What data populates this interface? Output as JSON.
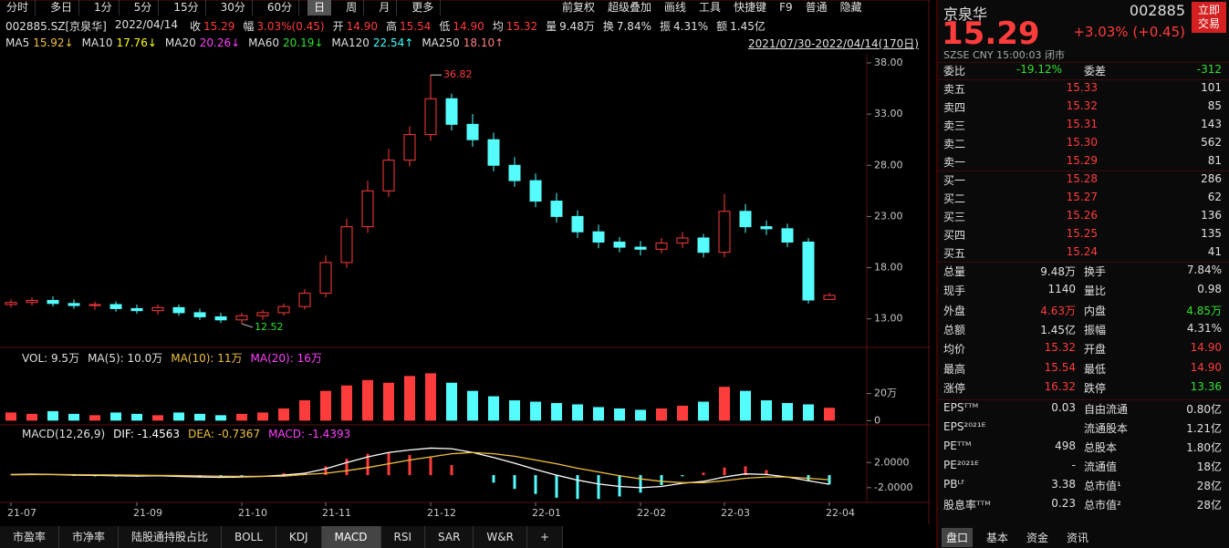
{
  "toolbar": {
    "periods": [
      "分时",
      "多日",
      "1分",
      "5分",
      "15分",
      "30分",
      "60分",
      "日",
      "周",
      "月",
      "更多"
    ],
    "active_period": 7,
    "tools": [
      "前复权",
      "超级叠加",
      "画线",
      "工具",
      "快捷键",
      "F9",
      "普通",
      "隐藏"
    ]
  },
  "quote_strip": {
    "symbol": "002885.SZ[京泉华]",
    "date": "2022/04/14",
    "items": [
      {
        "label": "收",
        "value": "15.29",
        "color": "#ff3c3c"
      },
      {
        "label": "幅",
        "value": "3.03%(0.45)",
        "color": "#ff3c3c"
      },
      {
        "label": "开",
        "value": "14.90",
        "color": "#ff3c3c"
      },
      {
        "label": "高",
        "value": "15.54",
        "color": "#ff3c3c"
      },
      {
        "label": "低",
        "value": "14.90",
        "color": "#ff3c3c"
      },
      {
        "label": "均",
        "value": "15.32",
        "color": "#ff3c3c"
      },
      {
        "label": "量",
        "value": "9.48万",
        "color": "#e0e0e0"
      },
      {
        "label": "换",
        "value": "7.84%",
        "color": "#e0e0e0"
      },
      {
        "label": "振",
        "value": "4.31%",
        "color": "#e0e0e0"
      },
      {
        "label": "额",
        "value": "1.45亿",
        "color": "#e0e0e0"
      }
    ]
  },
  "ma_legend": {
    "items": [
      {
        "label": "MA5",
        "value": "15.92↓",
        "color": "#f0c040"
      },
      {
        "label": "MA10",
        "value": "17.76↓",
        "color": "#ffff00"
      },
      {
        "label": "MA20",
        "value": "20.26↓",
        "color": "#ff40ff"
      },
      {
        "label": "MA60",
        "value": "20.19↓",
        "color": "#30e030"
      },
      {
        "label": "MA120",
        "value": "22.54↑",
        "color": "#40ffff"
      },
      {
        "label": "MA250",
        "value": "18.10↑",
        "color": "#ff8080"
      }
    ],
    "range": "2021/07/30-2022/04/14(170日)"
  },
  "chart_data": [
    {
      "type": "candlestick",
      "up_color": "#ff3c3c",
      "down_color": "#54fcfc",
      "ylim": [
        10.3,
        38.8
      ],
      "yticks": [
        {
          "value": 38,
          "label": "38.00"
        },
        {
          "value": 33,
          "label": "33.00"
        },
        {
          "value": 28,
          "label": "28.00"
        },
        {
          "value": 23,
          "label": "23.00"
        },
        {
          "value": 18,
          "label": "18.00"
        },
        {
          "value": 13,
          "label": "13.00"
        }
      ],
      "open": [
        14.4,
        14.6,
        14.8,
        14.5,
        14.3,
        14.4,
        14.0,
        13.8,
        14.1,
        13.6,
        13.2,
        12.9,
        13.3,
        13.6,
        14.2,
        15.5,
        18.5,
        22.0,
        25.5,
        28.5,
        31.0,
        34.5,
        32.0,
        30.5,
        28.0,
        26.5,
        24.5,
        23.0,
        21.5,
        20.5,
        20.0,
        19.8,
        20.4,
        20.9,
        19.5,
        23.5,
        22.0,
        21.8,
        20.5,
        14.9
      ],
      "high": [
        14.9,
        15.1,
        15.2,
        14.9,
        14.7,
        14.7,
        14.4,
        14.4,
        14.4,
        14.0,
        13.6,
        13.6,
        13.9,
        14.5,
        15.9,
        19.2,
        22.8,
        26.5,
        29.6,
        31.8,
        36.82,
        35.0,
        33.0,
        31.2,
        28.8,
        27.2,
        25.3,
        23.6,
        22.2,
        21.0,
        20.6,
        20.9,
        21.5,
        21.3,
        25.2,
        24.2,
        22.6,
        22.3,
        20.9,
        15.54
      ],
      "low": [
        14.1,
        14.3,
        14.2,
        14.0,
        13.9,
        13.7,
        13.5,
        13.4,
        13.3,
        12.9,
        12.6,
        12.52,
        12.9,
        13.3,
        13.9,
        15.1,
        18.0,
        21.4,
        24.9,
        27.9,
        30.4,
        31.4,
        29.8,
        27.4,
        25.9,
        23.9,
        22.4,
        20.9,
        19.9,
        19.5,
        19.2,
        19.4,
        19.9,
        19.0,
        19.0,
        21.4,
        21.2,
        20.0,
        14.5,
        14.9
      ],
      "close": [
        14.6,
        14.8,
        14.5,
        14.3,
        14.4,
        14.0,
        13.8,
        14.1,
        13.6,
        13.2,
        12.9,
        13.3,
        13.6,
        14.2,
        15.5,
        18.5,
        22.0,
        25.5,
        28.5,
        31.0,
        34.5,
        32.0,
        30.5,
        28.0,
        26.5,
        24.5,
        23.0,
        21.5,
        20.5,
        20.0,
        19.8,
        20.4,
        20.9,
        19.5,
        23.5,
        22.0,
        21.8,
        20.5,
        14.84,
        15.29
      ],
      "annotations": [
        {
          "label": "36.82",
          "value": 36.82,
          "field": "high"
        },
        {
          "label": "12.52",
          "value": 12.52,
          "field": "low"
        }
      ]
    },
    {
      "type": "bar",
      "legend": [
        "VOL: 9.5万",
        "MA(5): 10.0万",
        "MA(10): 11万",
        "MA(20): 16万"
      ],
      "legend_colors": [
        "#e0e0e0",
        "#e0e0e0",
        "#f0c040",
        "#ff40ff"
      ],
      "ylim": [
        -2.5,
        39.3
      ],
      "yticks": [
        {
          "value": 20,
          "label": "20万"
        },
        0
      ],
      "values": [
        6,
        5,
        7,
        5,
        4,
        6,
        5,
        4,
        6,
        5,
        4,
        5,
        6,
        9,
        15,
        22,
        26,
        30,
        28,
        33,
        35,
        28,
        22,
        18,
        15,
        14,
        13,
        12,
        10,
        9,
        8,
        9,
        11,
        14,
        25,
        22,
        15,
        13,
        12,
        9.48
      ]
    },
    {
      "type": "macd",
      "legend": [
        "MACD(12,26,9)",
        "DIF: -1.4563",
        "DEA: -0.7367",
        "MACD: -1.4393"
      ],
      "legend_colors": [
        "#e0e0e0",
        "#ffffff",
        "#f0c040",
        "#ff40ff"
      ],
      "ylim": [
        -4.2,
        4.8
      ],
      "yticks": [
        {
          "value": 2,
          "label": "2.0000"
        },
        {
          "value": -2,
          "label": "-2.0000"
        }
      ],
      "categories": [
        "21-07",
        null,
        null,
        null,
        null,
        null,
        "21-09",
        null,
        null,
        null,
        null,
        "21-10",
        null,
        null,
        null,
        "21-11",
        null,
        null,
        null,
        null,
        "21-12",
        null,
        null,
        null,
        null,
        "22-01",
        null,
        null,
        null,
        null,
        "22-02",
        null,
        null,
        null,
        "22-03",
        null,
        null,
        null,
        null,
        "22-04"
      ],
      "dif": [
        0.1,
        0.15,
        0.1,
        0,
        -0.05,
        -0.1,
        -0.15,
        -0.1,
        -0.2,
        -0.3,
        -0.35,
        -0.3,
        -0.2,
        0,
        0.3,
        1.0,
        2.0,
        2.9,
        3.6,
        4.0,
        4.3,
        4.2,
        3.6,
        2.8,
        1.9,
        0.9,
        0.0,
        -0.8,
        -1.4,
        -1.8,
        -2.0,
        -1.8,
        -1.3,
        -1.0,
        -0.3,
        0.2,
        0.1,
        -0.3,
        -0.9,
        -1.4563
      ],
      "dea": [
        0.05,
        0.08,
        0.09,
        0.07,
        0.05,
        0.02,
        -0.02,
        -0.04,
        -0.07,
        -0.12,
        -0.17,
        -0.2,
        -0.2,
        -0.16,
        0.1,
        0.3,
        0.7,
        1.2,
        1.8,
        2.4,
        2.9,
        3.4,
        3.6,
        3.4,
        3.0,
        2.4,
        1.8,
        1.1,
        0.5,
        -0.1,
        -0.6,
        -1.0,
        -1.2,
        -1.2,
        -0.9,
        -0.5,
        -0.3,
        -0.3,
        -0.5,
        -0.7367
      ],
      "macd": [
        0.1,
        0.14,
        0.02,
        -0.14,
        -0.2,
        -0.24,
        -0.26,
        -0.12,
        -0.26,
        -0.36,
        -0.36,
        -0.2,
        0,
        0.32,
        0.4,
        1.4,
        2.6,
        3.4,
        3.6,
        3.2,
        2.8,
        1.6,
        0,
        -1.2,
        -2.2,
        -3.0,
        -3.6,
        -3.8,
        -3.8,
        -3.4,
        -2.8,
        -1.6,
        -0.2,
        0.4,
        1.2,
        1.4,
        0.8,
        0,
        -0.8,
        -1.4393
      ]
    }
  ],
  "bottom_tabs": {
    "items": [
      "市盈率",
      "市净率",
      "陆股通持股占比",
      "BOLL",
      "KDJ",
      "MACD",
      "RSI",
      "SAR",
      "W&R",
      "+"
    ],
    "active": 5
  },
  "quote_panel": {
    "name": "京泉华",
    "code": "002885",
    "price": "15.29",
    "change": "+3.03% (+0.45)",
    "exchange": "SZSE  CNY  15:00:03  闭市",
    "trade_button": [
      "立即",
      "交易"
    ],
    "ratio": {
      "label": "委比",
      "value": "-19.12%",
      "label2": "委差",
      "value2": "-312"
    },
    "asks": [
      {
        "label": "卖五",
        "price": "15.33",
        "vol": "101"
      },
      {
        "label": "卖四",
        "price": "15.32",
        "vol": "85"
      },
      {
        "label": "卖三",
        "price": "15.31",
        "vol": "143"
      },
      {
        "label": "卖二",
        "price": "15.30",
        "vol": "562"
      },
      {
        "label": "卖一",
        "price": "15.29",
        "vol": "81"
      }
    ],
    "bids": [
      {
        "label": "买一",
        "price": "15.28",
        "vol": "286"
      },
      {
        "label": "买二",
        "price": "15.27",
        "vol": "62"
      },
      {
        "label": "买三",
        "price": "15.26",
        "vol": "136"
      },
      {
        "label": "买四",
        "price": "15.25",
        "vol": "135"
      },
      {
        "label": "买五",
        "price": "15.24",
        "vol": "41"
      }
    ],
    "stats": [
      {
        "l1": "总量",
        "v1": "9.48万",
        "c1": "#e0e0e0",
        "l2": "换手",
        "v2": "7.84%",
        "c2": "#e0e0e0"
      },
      {
        "l1": "现手",
        "v1": "1140",
        "c1": "#e0e0e0",
        "l2": "量比",
        "v2": "0.98",
        "c2": "#e0e0e0"
      },
      {
        "l1": "外盘",
        "v1": "4.63万",
        "c1": "#ff3c3c",
        "l2": "内盘",
        "v2": "4.85万",
        "c2": "#30e030"
      },
      {
        "l1": "总额",
        "v1": "1.45亿",
        "c1": "#e0e0e0",
        "l2": "振幅",
        "v2": "4.31%",
        "c2": "#e0e0e0"
      },
      {
        "l1": "均价",
        "v1": "15.32",
        "c1": "#ff3c3c",
        "l2": "开盘",
        "v2": "14.90",
        "c2": "#ff3c3c"
      },
      {
        "l1": "最高",
        "v1": "15.54",
        "c1": "#ff3c3c",
        "l2": "最低",
        "v2": "14.90",
        "c2": "#ff3c3c"
      },
      {
        "l1": "涨停",
        "v1": "16.32",
        "c1": "#ff3c3c",
        "l2": "跌停",
        "v2": "13.36",
        "c2": "#30e030"
      }
    ],
    "fundamentals": [
      {
        "l1": "EPSᵀᵀᴹ",
        "v1": "0.03",
        "l2": "自由流通",
        "v2": "0.80亿"
      },
      {
        "l1": "EPS²⁰²¹ᴱ",
        "l2": "流通股本",
        "v2": "1.21亿"
      },
      {
        "l1": "PEᵀᵀᴹ",
        "v1": "498",
        "l2": "总股本",
        "v2": "1.80亿"
      },
      {
        "l1": "PE²⁰²¹ᴱ",
        "v1": "-",
        "l2": "流通值",
        "v2": "18亿"
      },
      {
        "l1": "PBᴸᶠ",
        "v1": "3.38",
        "l2": "总市值¹",
        "v2": "28亿"
      },
      {
        "l1": "股息率ᵀᵀᴹ",
        "v1": "0.23",
        "l2": "总市值²",
        "v2": "28亿"
      }
    ],
    "tabs": [
      "盘口",
      "基本",
      "资金",
      "资讯"
    ]
  }
}
